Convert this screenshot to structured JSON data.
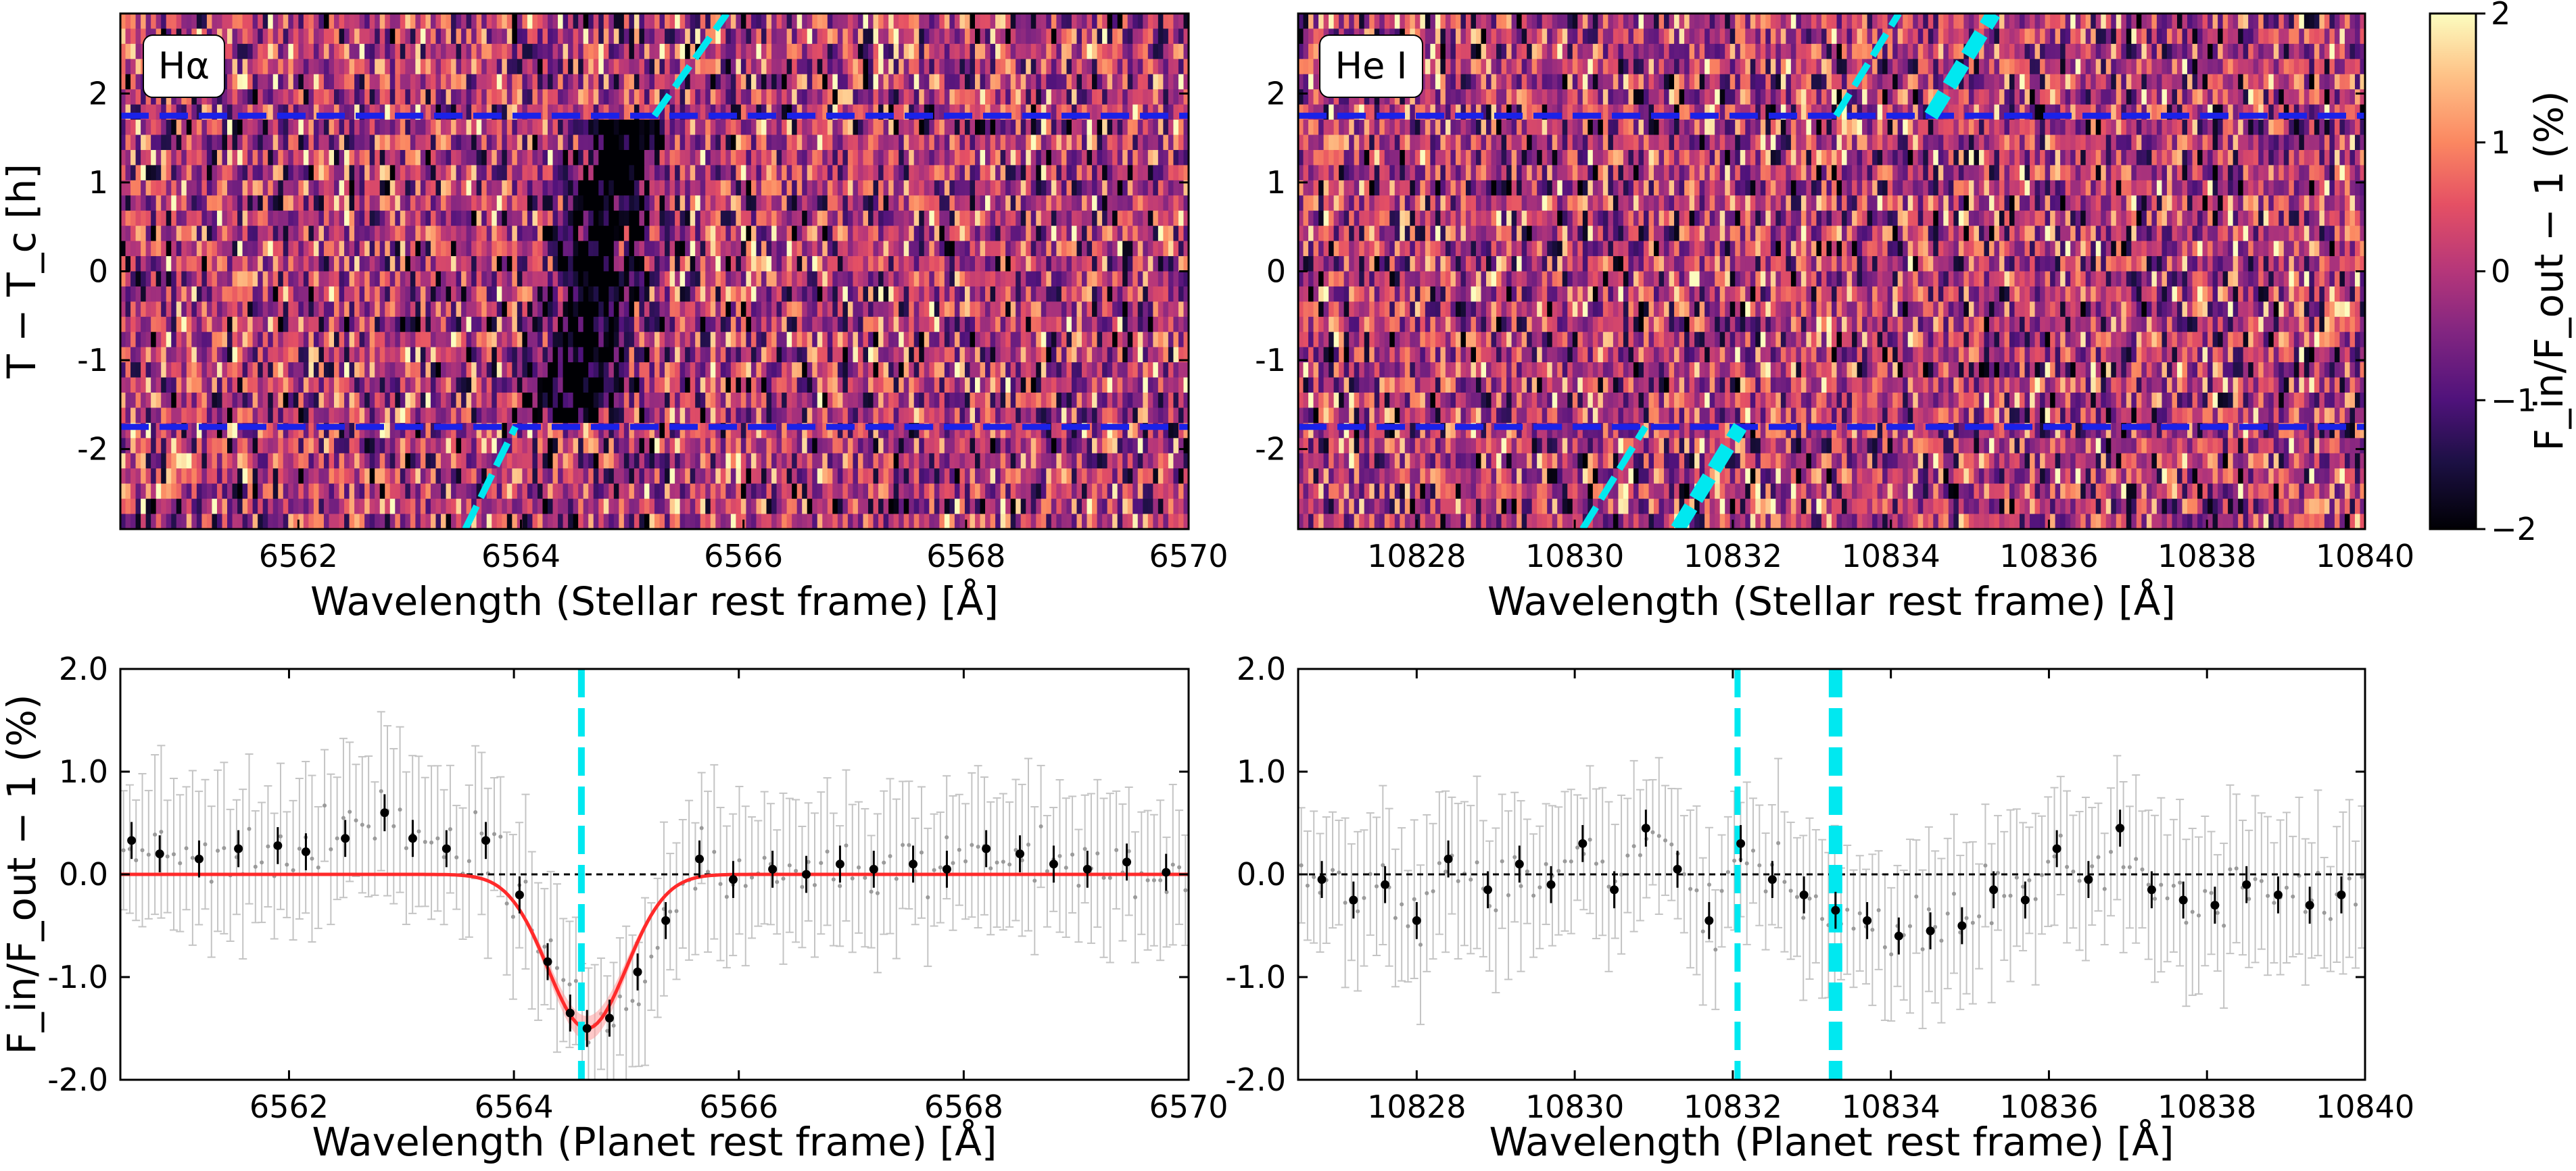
{
  "chart_data": [
    {
      "id": "heatmap_halpha",
      "type": "heatmap",
      "label": "Hα",
      "xlabel": "Wavelength (Stellar rest frame) [Å]",
      "ylabel": "T − T_c [h]",
      "xlim": [
        6560.4,
        6570
      ],
      "ylim": [
        -2.9,
        2.9
      ],
      "xticks": [
        "6562",
        "6564",
        "6566",
        "6568",
        "6570"
      ],
      "yticks": [
        "-2",
        "-1",
        "0",
        "1",
        "2"
      ],
      "transit_limits": [
        1.75,
        -1.75
      ],
      "planet_track_x": [
        [
          6563.5,
          -2.9
        ],
        [
          6565.2,
          1.75
        ],
        [
          6565.85,
          2.9
        ]
      ],
      "absorption_center": 6564.7,
      "colorscale": "magma",
      "zlim": [
        -2,
        2
      ]
    },
    {
      "id": "heatmap_hei",
      "type": "heatmap",
      "label": "He I",
      "xlabel": "Wavelength (Stellar rest frame) [Å]",
      "ylabel": "",
      "xlim": [
        10826.5,
        10840
      ],
      "ylim": [
        -2.9,
        2.9
      ],
      "xticks": [
        "10828",
        "10830",
        "10832",
        "10834",
        "10836",
        "10838",
        "10840"
      ],
      "yticks": [
        "-2",
        "-1",
        "0",
        "1",
        "2"
      ],
      "transit_limits": [
        1.75,
        -1.75
      ],
      "planet_tracks": [
        {
          "name": "thin",
          "x_bottom": 10830.1,
          "x_top": 10834.1
        },
        {
          "name": "thick",
          "x_bottom": 10831.3,
          "x_top": 10835.3
        }
      ],
      "colorscale": "magma",
      "zlim": [
        -2,
        2
      ]
    },
    {
      "id": "colorbar",
      "type": "heatmap",
      "label": "F_in/F_out − 1 (%)",
      "zlim": [
        -2,
        2
      ],
      "ticks": [
        "−2",
        "−1",
        "0",
        "1",
        "2"
      ]
    },
    {
      "id": "spectrum_halpha",
      "type": "scatter",
      "xlabel": "Wavelength (Planet rest frame) [Å]",
      "ylabel": "F_in/F_out − 1 (%)",
      "xlim": [
        6560.5,
        6570
      ],
      "ylim": [
        -2.0,
        2.0
      ],
      "xticks": [
        "6562",
        "6564",
        "6566",
        "6568",
        "6570"
      ],
      "yticks": [
        "2.0",
        "1.0",
        "0.0",
        "-1.0",
        "-2.0"
      ],
      "line_center": 6564.6,
      "fit": {
        "name": "Gaussian fit",
        "amplitude": -1.5,
        "center": 6564.65,
        "sigma": 0.35,
        "color": "#ff2a2a"
      },
      "binned": {
        "x": [
          6560.6,
          6560.85,
          6561.2,
          6561.55,
          6561.9,
          6562.15,
          6562.5,
          6562.85,
          6563.1,
          6563.4,
          6563.75,
          6564.05,
          6564.3,
          6564.5,
          6564.65,
          6564.85,
          6565.1,
          6565.35,
          6565.65,
          6565.95,
          6566.3,
          6566.6,
          6566.9,
          6567.2,
          6567.55,
          6567.85,
          6568.2,
          6568.5,
          6568.8,
          6569.1,
          6569.45,
          6569.8
        ],
        "y": [
          0.33,
          0.2,
          0.15,
          0.25,
          0.28,
          0.22,
          0.35,
          0.6,
          0.35,
          0.25,
          0.33,
          -0.2,
          -0.85,
          -1.35,
          -1.5,
          -1.4,
          -0.95,
          -0.45,
          0.15,
          -0.05,
          0.05,
          0.0,
          0.1,
          0.05,
          0.1,
          0.05,
          0.25,
          0.2,
          0.1,
          0.05,
          0.12,
          0.02
        ]
      }
    },
    {
      "id": "spectrum_hei",
      "type": "scatter",
      "xlabel": "Wavelength (Planet rest frame) [Å]",
      "ylabel": "",
      "xlim": [
        10826.5,
        10840
      ],
      "ylim": [
        -2.0,
        2.0
      ],
      "xticks": [
        "10828",
        "10830",
        "10832",
        "10834",
        "10836",
        "10838",
        "10840"
      ],
      "yticks": [
        "2.0",
        "1.0",
        "0.0",
        "-1.0",
        "-2.0"
      ],
      "line_centers": [
        {
          "name": "He I thin",
          "x": 10832.06
        },
        {
          "name": "He I thick",
          "x": 10833.3
        }
      ],
      "binned": {
        "x": [
          10826.8,
          10827.2,
          10827.6,
          10828.0,
          10828.4,
          10828.9,
          10829.3,
          10829.7,
          10830.1,
          10830.5,
          10830.9,
          10831.3,
          10831.7,
          10832.1,
          10832.5,
          10832.9,
          10833.3,
          10833.7,
          10834.1,
          10834.5,
          10834.9,
          10835.3,
          10835.7,
          10836.1,
          10836.5,
          10836.9,
          10837.3,
          10837.7,
          10838.1,
          10838.5,
          10838.9,
          10839.3,
          10839.7
        ],
        "y": [
          -0.05,
          -0.25,
          -0.1,
          -0.45,
          0.15,
          -0.15,
          0.1,
          -0.1,
          0.3,
          -0.15,
          0.45,
          0.05,
          -0.45,
          0.3,
          -0.05,
          -0.2,
          -0.35,
          -0.45,
          -0.6,
          -0.55,
          -0.5,
          -0.15,
          -0.25,
          0.25,
          -0.05,
          0.45,
          -0.15,
          -0.25,
          -0.3,
          -0.1,
          -0.2,
          -0.3,
          -0.2
        ]
      }
    }
  ]
}
